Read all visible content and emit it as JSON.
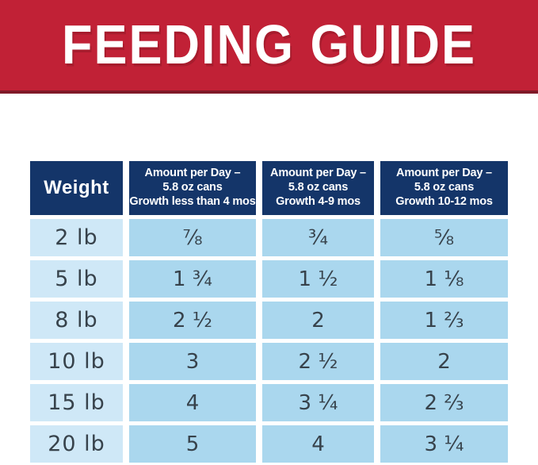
{
  "banner": {
    "title": "FEEDING GUIDE"
  },
  "table": {
    "header": {
      "weight_label": "Weight",
      "col1_label": "Amount per Day –\n5.8 oz cans\nGrowth less than 4 mos",
      "col2_label": "Amount per Day –\n5.8 oz cans\nGrowth 4-9 mos",
      "col3_label": "Amount per Day –\n5.8 oz cans\nGrowth 10-12 mos"
    },
    "rows": [
      {
        "weight": "2 lb",
        "values": [
          "⅞",
          "¾",
          "⅝"
        ]
      },
      {
        "weight": "5 lb",
        "values": [
          "1 ¾",
          "1 ½",
          "1 ⅛"
        ]
      },
      {
        "weight": "8 lb",
        "values": [
          "2 ½",
          "2",
          "1 ⅔"
        ]
      },
      {
        "weight": "10 lb",
        "values": [
          "3",
          "2 ½",
          "2"
        ]
      },
      {
        "weight": "15 lb",
        "values": [
          "4",
          "3 ¼",
          "2 ⅔"
        ]
      },
      {
        "weight": "20 lb",
        "values": [
          "5",
          "4",
          "3 ¼"
        ]
      }
    ]
  },
  "colors": {
    "banner_red": "#c12136",
    "banner_bottom_edge": "#7f1a28",
    "header_navy": "#143569",
    "weight_cell_blue": "#cfe8f7",
    "value_cell_blue": "#aad7ee",
    "cell_text": "#37424b",
    "header_text": "#ffffff"
  }
}
